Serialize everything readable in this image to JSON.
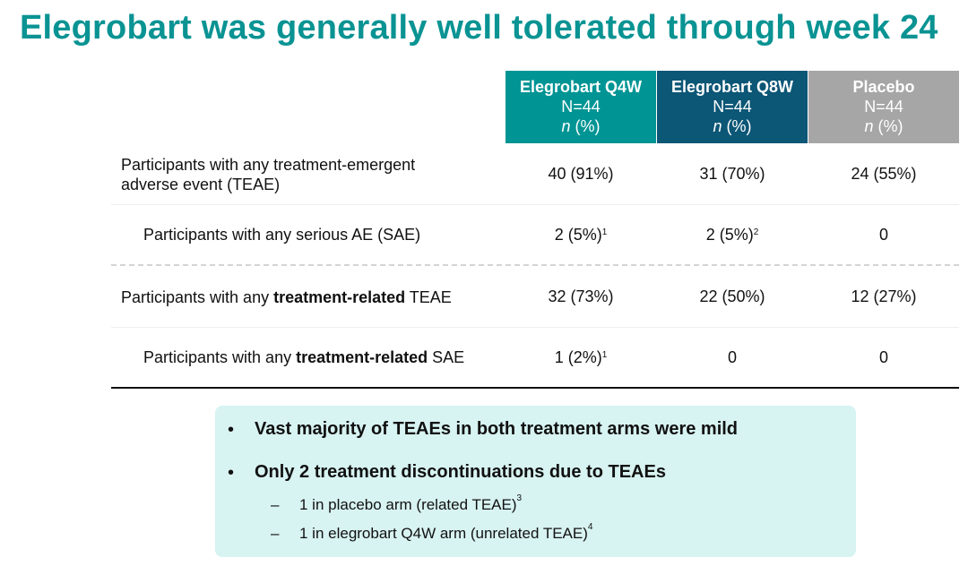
{
  "title": "Elegrobart was generally well tolerated through week 24",
  "columns": [
    {
      "name": "Elegrobart Q4W",
      "n": "N=44",
      "unit_n": "n",
      "unit_pct": " (%)",
      "color": "#009494"
    },
    {
      "name": "Elegrobart Q8W",
      "n": "N=44",
      "unit_n": "n",
      "unit_pct": " (%)",
      "color": "#0c5676"
    },
    {
      "name": "Placebo",
      "n": "N=44",
      "unit_n": "n",
      "unit_pct": " (%)",
      "color": "#a6a6a6"
    }
  ],
  "rows": [
    {
      "label": "Participants with any treatment-emergent adverse event (TEAE)",
      "values": [
        {
          "v": "40 (91%)",
          "sup": ""
        },
        {
          "v": "31 (70%)",
          "sup": ""
        },
        {
          "v": "24 (55%)",
          "sup": ""
        }
      ]
    },
    {
      "label": "Participants with any serious AE (SAE)",
      "values": [
        {
          "v": "2 (5%)",
          "sup": "1"
        },
        {
          "v": "2 (5%)",
          "sup": "2"
        },
        {
          "v": "0",
          "sup": ""
        }
      ]
    },
    {
      "label_pre": "Participants with any ",
      "label_bold": "treatment-related",
      "label_post": " TEAE",
      "values": [
        {
          "v": "32 (73%)",
          "sup": ""
        },
        {
          "v": "22 (50%)",
          "sup": ""
        },
        {
          "v": "12 (27%)",
          "sup": ""
        }
      ]
    },
    {
      "label_pre": "Participants with any ",
      "label_bold": "treatment-related",
      "label_post": " SAE",
      "values": [
        {
          "v": "1 (2%)",
          "sup": "1"
        },
        {
          "v": "0",
          "sup": ""
        },
        {
          "v": "0",
          "sup": ""
        }
      ]
    }
  ],
  "summary": {
    "bullets": [
      "Vast majority of TEAEs in both treatment arms were mild",
      "Only 2 treatment discontinuations due to TEAEs"
    ],
    "bullet_char": "•",
    "dash": "–",
    "subs": [
      {
        "text": "1 in placebo arm (related TEAE)",
        "sup": "3"
      },
      {
        "text": "1 in elegrobart Q4W arm (unrelated TEAE)",
        "sup": "4"
      }
    ]
  }
}
